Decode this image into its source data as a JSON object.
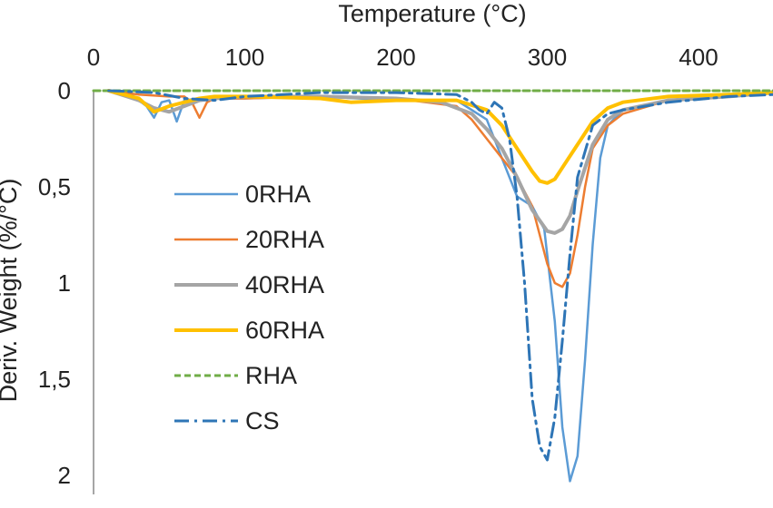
{
  "chart_data": {
    "type": "line",
    "title": "",
    "xlabel": "Temperature (°C)",
    "ylabel": "Deriv. Weight (%/°C)",
    "xlim": [
      0,
      450
    ],
    "ylim": [
      0,
      2
    ],
    "y_inverted": true,
    "x_axis_position": "top",
    "x_ticks": [
      0,
      100,
      200,
      300,
      400
    ],
    "x_tick_labels": [
      "0",
      "100",
      "200",
      "300",
      "400"
    ],
    "y_ticks": [
      0,
      0.5,
      1,
      1.5,
      2
    ],
    "y_tick_labels": [
      "0",
      "0,5",
      "1",
      "1,5",
      "2"
    ],
    "grid": false,
    "legend_position": "left-middle",
    "series": [
      {
        "name": "0RHA",
        "color": "#5B9BD5",
        "dash": "solid",
        "x": [
          10,
          25,
          35,
          40,
          45,
          50,
          55,
          60,
          70,
          100,
          150,
          200,
          240,
          260,
          270,
          280,
          290,
          298,
          305,
          310,
          315,
          320,
          325,
          330,
          335,
          340,
          350,
          380,
          420,
          450
        ],
        "y": [
          0.0,
          0.02,
          0.08,
          0.14,
          0.06,
          0.05,
          0.16,
          0.05,
          0.04,
          0.04,
          0.03,
          0.05,
          0.05,
          0.15,
          0.35,
          0.55,
          0.6,
          0.72,
          1.2,
          1.75,
          2.03,
          1.9,
          1.4,
          0.8,
          0.35,
          0.18,
          0.1,
          0.05,
          0.02,
          0.01
        ]
      },
      {
        "name": "20RHA",
        "color": "#ED7D31",
        "dash": "solid",
        "x": [
          10,
          30,
          50,
          60,
          65,
          70,
          75,
          80,
          100,
          150,
          200,
          240,
          250,
          260,
          270,
          280,
          290,
          300,
          305,
          310,
          315,
          320,
          325,
          330,
          340,
          350,
          380,
          420,
          450
        ],
        "y": [
          0.0,
          0.02,
          0.03,
          0.03,
          0.06,
          0.14,
          0.06,
          0.04,
          0.04,
          0.03,
          0.04,
          0.08,
          0.15,
          0.25,
          0.35,
          0.45,
          0.6,
          0.9,
          1.0,
          1.02,
          0.95,
          0.75,
          0.5,
          0.3,
          0.18,
          0.12,
          0.05,
          0.03,
          0.01
        ]
      },
      {
        "name": "40RHA",
        "color": "#A5A5A5",
        "dash": "solid",
        "x": [
          10,
          30,
          40,
          50,
          60,
          70,
          80,
          100,
          150,
          200,
          230,
          250,
          260,
          270,
          280,
          290,
          300,
          305,
          310,
          315,
          320,
          330,
          340,
          350,
          380,
          420,
          450
        ],
        "y": [
          0.0,
          0.05,
          0.09,
          0.11,
          0.08,
          0.05,
          0.04,
          0.03,
          0.03,
          0.04,
          0.06,
          0.12,
          0.2,
          0.3,
          0.45,
          0.62,
          0.73,
          0.74,
          0.72,
          0.65,
          0.52,
          0.28,
          0.15,
          0.1,
          0.05,
          0.03,
          0.01
        ]
      },
      {
        "name": "60RHA",
        "color": "#FFC000",
        "dash": "solid",
        "x": [
          10,
          30,
          40,
          50,
          60,
          70,
          80,
          100,
          150,
          170,
          200,
          240,
          260,
          270,
          280,
          290,
          295,
          300,
          305,
          310,
          320,
          330,
          340,
          350,
          380,
          420,
          450
        ],
        "y": [
          0.0,
          0.04,
          0.11,
          0.08,
          0.06,
          0.04,
          0.03,
          0.03,
          0.04,
          0.06,
          0.05,
          0.05,
          0.1,
          0.18,
          0.3,
          0.42,
          0.47,
          0.48,
          0.46,
          0.4,
          0.28,
          0.16,
          0.09,
          0.06,
          0.03,
          0.02,
          0.01
        ]
      },
      {
        "name": "RHA",
        "color": "#70AD47",
        "dash": "short-dash",
        "x": [
          0,
          100,
          200,
          300,
          400,
          450
        ],
        "y": [
          0.0,
          0.0,
          0.0,
          0.0,
          0.0,
          0.0
        ]
      },
      {
        "name": "CS",
        "color": "#2E75B6",
        "dash": "dash-dot",
        "x": [
          10,
          40,
          60,
          80,
          100,
          150,
          200,
          240,
          250,
          255,
          260,
          265,
          270,
          275,
          280,
          285,
          290,
          295,
          300,
          305,
          310,
          315,
          320,
          330,
          340,
          350,
          380,
          420,
          450
        ],
        "y": [
          0.0,
          0.01,
          0.04,
          0.05,
          0.03,
          0.01,
          0.01,
          0.02,
          0.06,
          0.1,
          0.12,
          0.06,
          0.09,
          0.25,
          0.55,
          1.0,
          1.6,
          1.85,
          1.92,
          1.7,
          1.3,
          0.85,
          0.45,
          0.18,
          0.12,
          0.1,
          0.06,
          0.03,
          0.02
        ]
      }
    ]
  }
}
